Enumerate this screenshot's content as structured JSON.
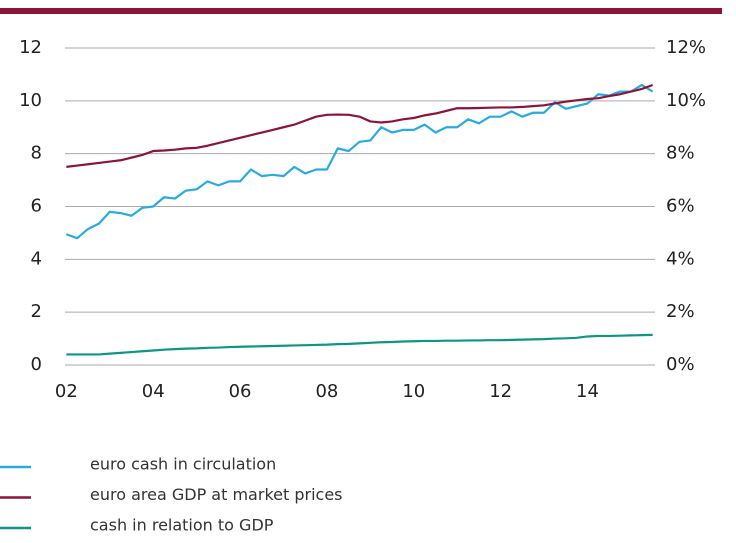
{
  "chart_data": {
    "type": "line",
    "x": [
      2002,
      2002.25,
      2002.5,
      2002.75,
      2003,
      2003.25,
      2003.5,
      2003.75,
      2004,
      2004.25,
      2004.5,
      2004.75,
      2005,
      2005.25,
      2005.5,
      2005.75,
      2006,
      2006.25,
      2006.5,
      2006.75,
      2007,
      2007.25,
      2007.5,
      2007.75,
      2008,
      2008.25,
      2008.5,
      2008.75,
      2009,
      2009.25,
      2009.5,
      2009.75,
      2010,
      2010.25,
      2010.5,
      2010.75,
      2011,
      2011.25,
      2011.5,
      2011.75,
      2012,
      2012.25,
      2012.5,
      2012.75,
      2013,
      2013.25,
      2013.5,
      2013.75,
      2014,
      2014.25,
      2014.5,
      2014.75,
      2015,
      2015.25,
      2015.5
    ],
    "series": [
      {
        "name": "euro cash in circulation",
        "color": "#29abe2",
        "values": [
          4.95,
          4.8,
          5.15,
          5.35,
          5.8,
          5.75,
          5.65,
          5.95,
          6.0,
          6.35,
          6.3,
          6.6,
          6.65,
          6.95,
          6.8,
          6.95,
          6.95,
          7.4,
          7.15,
          7.2,
          7.15,
          7.5,
          7.25,
          7.4,
          7.4,
          8.2,
          8.1,
          8.45,
          8.5,
          9.0,
          8.8,
          8.9,
          8.9,
          9.1,
          8.8,
          9.0,
          9.0,
          9.3,
          9.15,
          9.4,
          9.4,
          9.6,
          9.4,
          9.55,
          9.55,
          9.95,
          9.7,
          9.8,
          9.9,
          10.25,
          10.2,
          10.35,
          10.35,
          10.6,
          10.35
        ]
      },
      {
        "name": "euro area GDP at market prices",
        "color": "#8b1538",
        "values": [
          7.5,
          7.55,
          7.6,
          7.65,
          7.7,
          7.75,
          7.85,
          7.95,
          8.1,
          8.12,
          8.15,
          8.2,
          8.22,
          8.3,
          8.4,
          8.5,
          8.6,
          8.7,
          8.8,
          8.9,
          9.0,
          9.1,
          9.25,
          9.4,
          9.47,
          9.48,
          9.47,
          9.4,
          9.22,
          9.18,
          9.22,
          9.3,
          9.35,
          9.45,
          9.52,
          9.62,
          9.72,
          9.72,
          9.73,
          9.74,
          9.75,
          9.75,
          9.77,
          9.8,
          9.83,
          9.9,
          9.97,
          10.02,
          10.07,
          10.1,
          10.18,
          10.25,
          10.35,
          10.45,
          10.6
        ]
      },
      {
        "name": "cash in relation to GDP",
        "color": "#0e9584",
        "axis": "y2",
        "values": [
          0.4,
          0.4,
          0.4,
          0.4,
          0.43,
          0.46,
          0.49,
          0.52,
          0.55,
          0.58,
          0.6,
          0.62,
          0.63,
          0.65,
          0.66,
          0.68,
          0.69,
          0.7,
          0.71,
          0.72,
          0.73,
          0.74,
          0.75,
          0.76,
          0.77,
          0.79,
          0.8,
          0.82,
          0.84,
          0.86,
          0.87,
          0.89,
          0.9,
          0.91,
          0.91,
          0.92,
          0.92,
          0.93,
          0.93,
          0.94,
          0.94,
          0.95,
          0.96,
          0.97,
          0.98,
          1.0,
          1.01,
          1.03,
          1.08,
          1.1,
          1.1,
          1.11,
          1.12,
          1.13,
          1.14
        ]
      }
    ],
    "xlim": [
      2001.9,
      2015.6
    ],
    "xticks": [
      {
        "value": 2002,
        "label": "02"
      },
      {
        "value": 2004,
        "label": "04"
      },
      {
        "value": 2006,
        "label": "06"
      },
      {
        "value": 2008,
        "label": "08"
      },
      {
        "value": 2010,
        "label": "10"
      },
      {
        "value": 2012,
        "label": "12"
      },
      {
        "value": 2014,
        "label": "14"
      }
    ],
    "ylim": [
      0,
      12
    ],
    "yticks": [
      0,
      2,
      4,
      6,
      8,
      10,
      12
    ],
    "y2lim": [
      0,
      12
    ],
    "y2ticks": [
      {
        "value": 0,
        "label": "0%"
      },
      {
        "value": 2,
        "label": "2%"
      },
      {
        "value": 4,
        "label": "4%"
      },
      {
        "value": 6,
        "label": "6%"
      },
      {
        "value": 8,
        "label": "8%"
      },
      {
        "value": 10,
        "label": "10%"
      },
      {
        "value": 12,
        "label": "12%"
      }
    ],
    "grid": true,
    "legend": "bottom"
  }
}
